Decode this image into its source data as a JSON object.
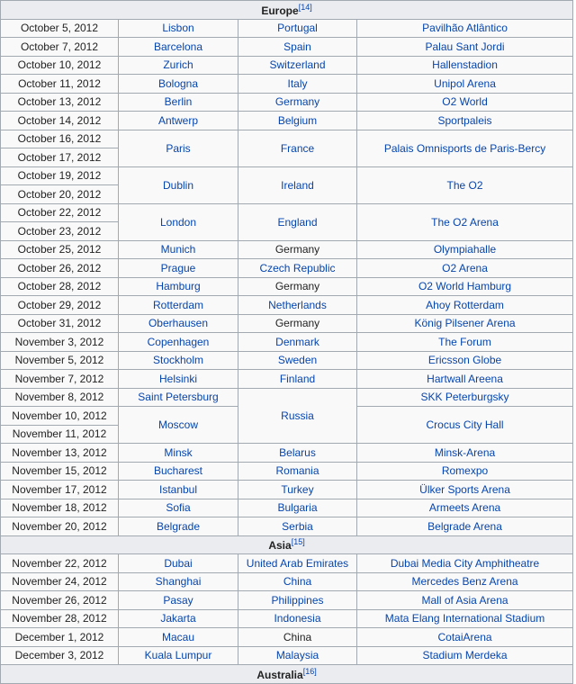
{
  "sections": [
    {
      "title": "Europe",
      "ref": "[14]",
      "rows": [
        {
          "date": "October 5, 2012",
          "city": {
            "t": "Lisbon"
          },
          "country": {
            "t": "Portugal",
            "link": true
          },
          "venue": {
            "t": "Pavilhão Atlântico"
          }
        },
        {
          "date": "October 7, 2012",
          "city": {
            "t": "Barcelona"
          },
          "country": {
            "t": "Spain",
            "link": true
          },
          "venue": {
            "t": "Palau Sant Jordi"
          }
        },
        {
          "date": "October 10, 2012",
          "city": {
            "t": "Zurich"
          },
          "country": {
            "t": "Switzerland",
            "link": true
          },
          "venue": {
            "t": "Hallenstadion"
          }
        },
        {
          "date": "October 11, 2012",
          "city": {
            "t": "Bologna"
          },
          "country": {
            "t": "Italy",
            "link": true
          },
          "venue": {
            "t": "Unipol Arena"
          }
        },
        {
          "date": "October 13, 2012",
          "city": {
            "t": "Berlin"
          },
          "country": {
            "t": "Germany",
            "link": true
          },
          "venue": {
            "t": "O2 World"
          }
        },
        {
          "date": "October 14, 2012",
          "city": {
            "t": "Antwerp"
          },
          "country": {
            "t": "Belgium",
            "link": true
          },
          "venue": {
            "t": "Sportpaleis"
          }
        },
        {
          "date": "October 16, 2012",
          "city": {
            "t": "Paris",
            "rs": 2
          },
          "country": {
            "t": "France",
            "link": true,
            "rs": 2
          },
          "venue": {
            "t": "Palais Omnisports de Paris-Bercy",
            "rs": 2
          }
        },
        {
          "date": "October 17, 2012"
        },
        {
          "date": "October 19, 2012",
          "city": {
            "t": "Dublin",
            "rs": 2
          },
          "country": {
            "t": "Ireland",
            "link": true,
            "rs": 2
          },
          "venue": {
            "t": "The O2",
            "rs": 2
          }
        },
        {
          "date": "October 20, 2012"
        },
        {
          "date": "October 22, 2012",
          "city": {
            "t": "London",
            "rs": 2
          },
          "country": {
            "t": "England",
            "link": true,
            "rs": 2
          },
          "venue": {
            "t": "The O2 Arena",
            "rs": 2
          }
        },
        {
          "date": "October 23, 2012"
        },
        {
          "date": "October 25, 2012",
          "city": {
            "t": "Munich"
          },
          "country": {
            "t": "Germany",
            "link": false
          },
          "venue": {
            "t": "Olympiahalle"
          }
        },
        {
          "date": "October 26, 2012",
          "city": {
            "t": "Prague"
          },
          "country": {
            "t": "Czech Republic",
            "link": true
          },
          "venue": {
            "t": "O2 Arena"
          }
        },
        {
          "date": "October 28, 2012",
          "city": {
            "t": "Hamburg"
          },
          "country": {
            "t": "Germany",
            "link": false
          },
          "venue": {
            "t": "O2 World Hamburg"
          }
        },
        {
          "date": "October 29, 2012",
          "city": {
            "t": "Rotterdam"
          },
          "country": {
            "t": "Netherlands",
            "link": true
          },
          "venue": {
            "t": "Ahoy Rotterdam"
          }
        },
        {
          "date": "October 31, 2012",
          "city": {
            "t": "Oberhausen"
          },
          "country": {
            "t": "Germany",
            "link": false
          },
          "venue": {
            "t": "König Pilsener Arena"
          }
        },
        {
          "date": "November 3, 2012",
          "city": {
            "t": "Copenhagen"
          },
          "country": {
            "t": "Denmark",
            "link": true
          },
          "venue": {
            "t": "The Forum"
          }
        },
        {
          "date": "November 5, 2012",
          "city": {
            "t": "Stockholm"
          },
          "country": {
            "t": "Sweden",
            "link": true
          },
          "venue": {
            "t": "Ericsson Globe"
          }
        },
        {
          "date": "November 7, 2012",
          "city": {
            "t": "Helsinki"
          },
          "country": {
            "t": "Finland",
            "link": true
          },
          "venue": {
            "t": "Hartwall Areena"
          }
        },
        {
          "date": "November 8, 2012",
          "city": {
            "t": "Saint Petersburg"
          },
          "country": {
            "t": "Russia",
            "link": true,
            "rs": 3
          },
          "venue": {
            "t": "SKK Peterburgsky"
          }
        },
        {
          "date": "November 10, 2012",
          "city": {
            "t": "Moscow",
            "rs": 2
          },
          "venue": {
            "t": "Crocus City Hall",
            "rs": 2
          }
        },
        {
          "date": "November 11, 2012"
        },
        {
          "date": "November 13, 2012",
          "city": {
            "t": "Minsk"
          },
          "country": {
            "t": "Belarus",
            "link": true
          },
          "venue": {
            "t": "Minsk-Arena"
          }
        },
        {
          "date": "November 15, 2012",
          "city": {
            "t": "Bucharest"
          },
          "country": {
            "t": "Romania",
            "link": true
          },
          "venue": {
            "t": "Romexpo"
          }
        },
        {
          "date": "November 17, 2012",
          "city": {
            "t": "Istanbul"
          },
          "country": {
            "t": "Turkey",
            "link": true
          },
          "venue": {
            "t": "Ülker Sports Arena"
          }
        },
        {
          "date": "November 18, 2012",
          "city": {
            "t": "Sofia"
          },
          "country": {
            "t": "Bulgaria",
            "link": true
          },
          "venue": {
            "t": "Armeets Arena"
          }
        },
        {
          "date": "November 20, 2012",
          "city": {
            "t": "Belgrade"
          },
          "country": {
            "t": "Serbia",
            "link": true
          },
          "venue": {
            "t": "Belgrade Arena"
          }
        }
      ]
    },
    {
      "title": "Asia",
      "ref": "[15]",
      "rows": [
        {
          "date": "November 22, 2012",
          "city": {
            "t": "Dubai"
          },
          "country": {
            "t": "United Arab Emirates",
            "link": true
          },
          "venue": {
            "t": "Dubai Media City Amphitheatre"
          }
        },
        {
          "date": "November 24, 2012",
          "city": {
            "t": "Shanghai"
          },
          "country": {
            "t": "China",
            "link": true
          },
          "venue": {
            "t": "Mercedes Benz Arena"
          }
        },
        {
          "date": "November 26, 2012",
          "city": {
            "t": "Pasay"
          },
          "country": {
            "t": "Philippines",
            "link": true
          },
          "venue": {
            "t": "Mall of Asia Arena"
          }
        },
        {
          "date": "November 28, 2012",
          "city": {
            "t": "Jakarta"
          },
          "country": {
            "t": "Indonesia",
            "link": true
          },
          "venue": {
            "t": "Mata Elang International Stadium"
          }
        },
        {
          "date": "December 1, 2012",
          "city": {
            "t": "Macau"
          },
          "country": {
            "t": "China",
            "link": false
          },
          "venue": {
            "t": "CotaiArena"
          }
        },
        {
          "date": "December 3, 2012",
          "city": {
            "t": "Kuala Lumpur"
          },
          "country": {
            "t": "Malaysia",
            "link": true
          },
          "venue": {
            "t": "Stadium Merdeka"
          }
        }
      ]
    },
    {
      "title": "Australia",
      "ref": "[16]",
      "rows": []
    }
  ]
}
